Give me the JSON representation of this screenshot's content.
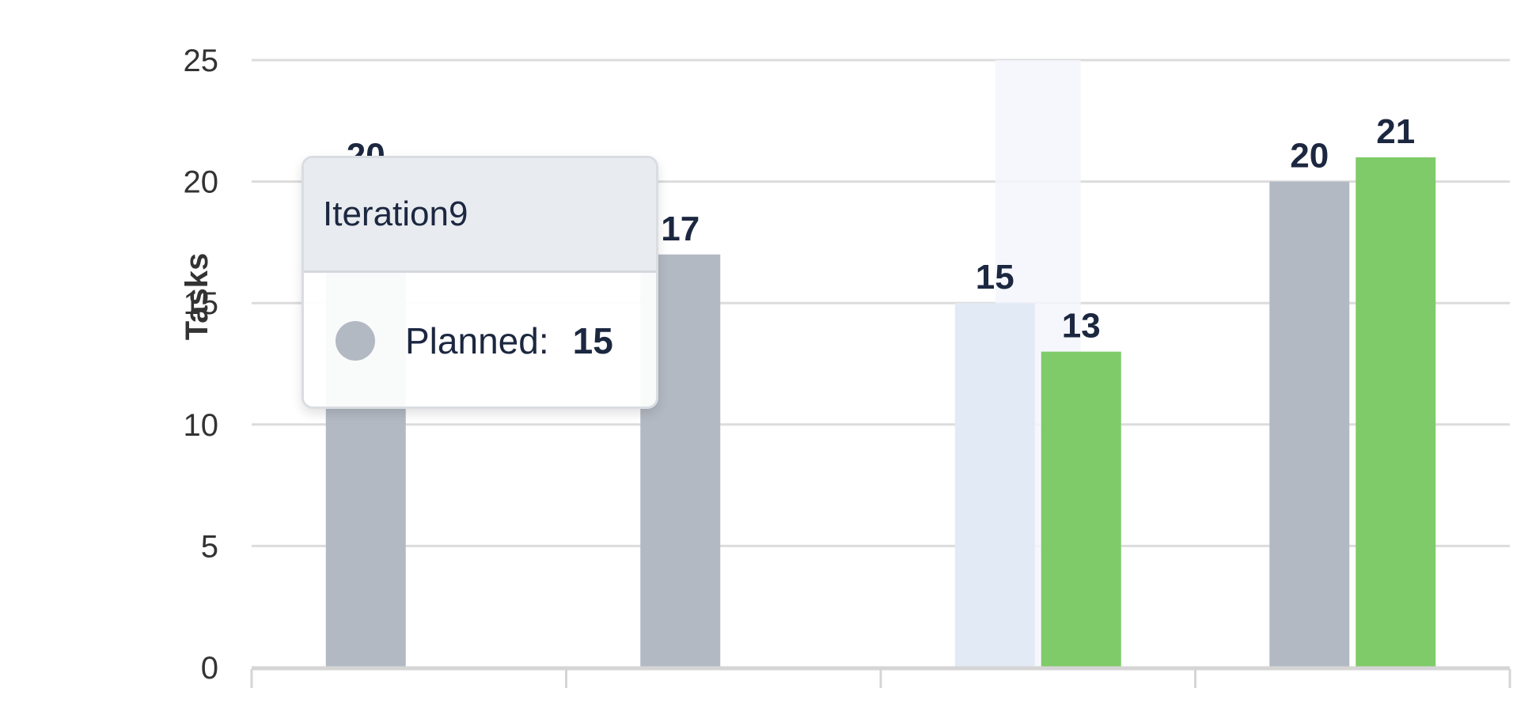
{
  "chart_data": {
    "type": "bar",
    "title": "",
    "xlabel": "",
    "ylabel": "Tasks",
    "ylim": [
      0,
      25
    ],
    "yticks": [
      0,
      5,
      10,
      15,
      20,
      25
    ],
    "categories": [
      "",
      "",
      "Iteration9",
      ""
    ],
    "series": [
      {
        "name": "Planned",
        "color": "#b3b9c3",
        "values": [
          20,
          17,
          15,
          20
        ]
      },
      {
        "name": "",
        "color": "#7fcb69",
        "values": [
          null,
          null,
          13,
          21
        ]
      }
    ],
    "grid": true,
    "legend": "none"
  },
  "tooltip": {
    "title": "Iteration9",
    "series_label": "Planned:",
    "value": "15",
    "swatch_color": "#b3b9c3"
  }
}
